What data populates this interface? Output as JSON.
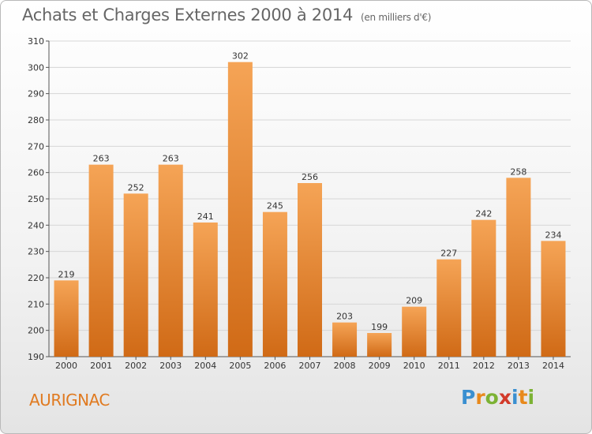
{
  "title": "Achats et Charges Externes 2000 à 2014",
  "unit": "(en milliers d'€)",
  "city": "AURIGNAC",
  "logo": {
    "letters": [
      "P",
      "r",
      "o",
      "x",
      "i",
      "t",
      "i"
    ],
    "colors": [
      "#3a8fd0",
      "#e8891c",
      "#7cb234",
      "#d23a2a",
      "#3a8fd0",
      "#e8891c",
      "#7cb234"
    ]
  },
  "colors": {
    "bar_top": "#f5a456",
    "bar_bottom": "#d06a16",
    "title": "#666666",
    "city": "#e07a20"
  },
  "chart_data": {
    "type": "bar",
    "categories": [
      "2000",
      "2001",
      "2002",
      "2003",
      "2004",
      "2005",
      "2006",
      "2007",
      "2008",
      "2009",
      "2010",
      "2011",
      "2012",
      "2013",
      "2014"
    ],
    "values": [
      219,
      263,
      252,
      263,
      241,
      302,
      245,
      256,
      203,
      199,
      209,
      227,
      242,
      258,
      234
    ],
    "title": "Achats et Charges Externes 2000 à 2014",
    "xlabel": "",
    "ylabel": "",
    "ylim": [
      190,
      310
    ],
    "yticks": [
      190,
      200,
      210,
      220,
      230,
      240,
      250,
      260,
      270,
      280,
      290,
      300,
      310
    ],
    "grid": true
  }
}
